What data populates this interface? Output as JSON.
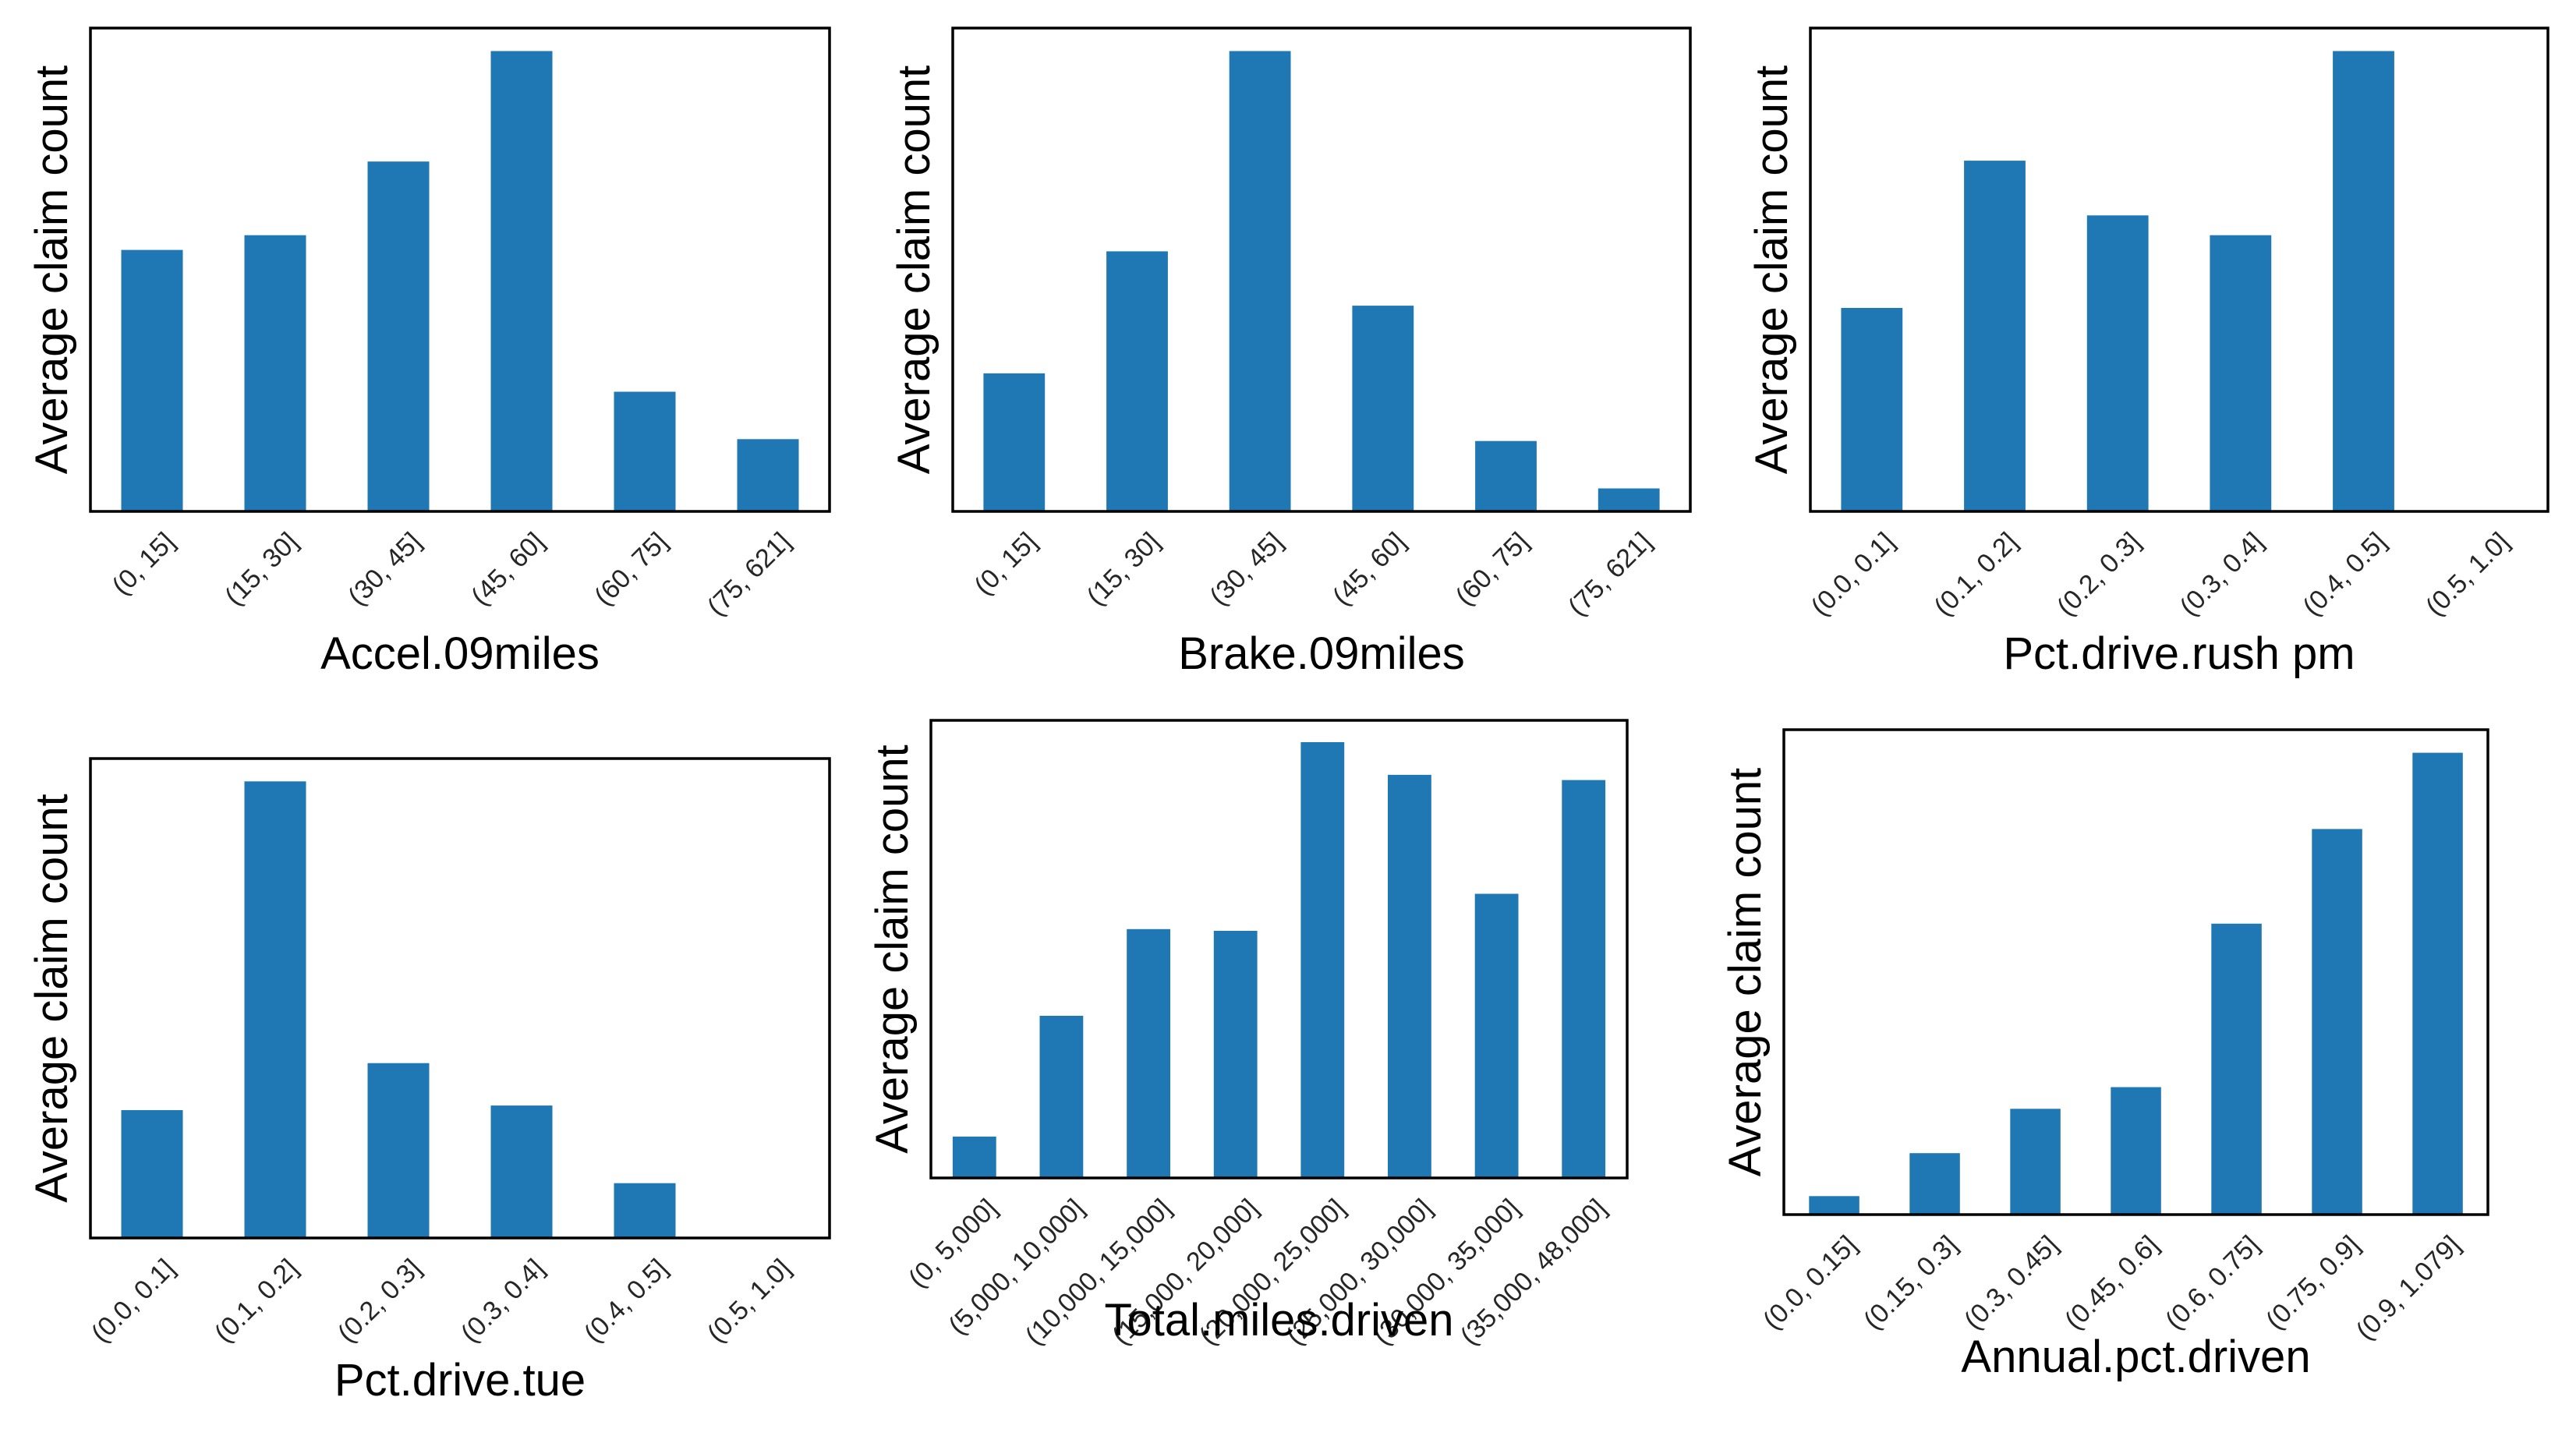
{
  "chart_data": [
    {
      "type": "bar",
      "xlabel": "Accel.09miles",
      "ylabel": "Average claim count",
      "categories": [
        "(0, 15]",
        "(15, 30]",
        "(30, 45]",
        "(45, 60]",
        "(60, 75]",
        "(75, 621]"
      ],
      "values": [
        0.568,
        0.6,
        0.76,
        1.0,
        0.26,
        0.157
      ],
      "ylim": [
        0,
        1.05
      ],
      "yticks_shown": false,
      "grid": false,
      "bar_color": "#1f77b4"
    },
    {
      "type": "bar",
      "xlabel": "Brake.09miles",
      "ylabel": "Average claim count",
      "categories": [
        "(0, 15]",
        "(15, 30]",
        "(30, 45]",
        "(45, 60]",
        "(60, 75]",
        "(75, 621]"
      ],
      "values": [
        0.3,
        0.565,
        1.0,
        0.447,
        0.153,
        0.05
      ],
      "ylim": [
        0,
        1.05
      ],
      "yticks_shown": false,
      "grid": false,
      "bar_color": "#1f77b4"
    },
    {
      "type": "bar",
      "xlabel": "Pct.drive.rush pm",
      "ylabel": "Average claim count",
      "categories": [
        "(0.0, 0.1]",
        "(0.1, 0.2]",
        "(0.2, 0.3]",
        "(0.3, 0.4]",
        "(0.4, 0.5]",
        "(0.5, 1.0]"
      ],
      "values": [
        0.442,
        0.762,
        0.643,
        0.6,
        1.0,
        0.0
      ],
      "ylim": [
        0,
        1.05
      ],
      "yticks_shown": false,
      "grid": false,
      "bar_color": "#1f77b4"
    },
    {
      "type": "bar",
      "xlabel": "Pct.drive.tue",
      "ylabel": "Average claim count",
      "categories": [
        "(0.0, 0.1]",
        "(0.1, 0.2]",
        "(0.2, 0.3]",
        "(0.3, 0.4]",
        "(0.4, 0.5]",
        "(0.5, 1.0]"
      ],
      "values": [
        0.28,
        1.0,
        0.383,
        0.29,
        0.12,
        0.0
      ],
      "ylim": [
        0,
        1.05
      ],
      "yticks_shown": false,
      "grid": false,
      "bar_color": "#1f77b4"
    },
    {
      "type": "bar",
      "xlabel": "Total.miles.driven",
      "ylabel": "Average claim count",
      "categories": [
        "(0, 5,000]",
        "(5,000, 10,000]",
        "(10,000, 15,000]",
        "(15,000, 20,000]",
        "(20,000, 25,000]",
        "(25,000, 30,000]",
        "(30,000, 35,000]",
        "(35,000, 48,000]"
      ],
      "values": [
        0.095,
        0.372,
        0.571,
        0.567,
        1.0,
        0.925,
        0.652,
        0.913
      ],
      "ylim": [
        0,
        1.05
      ],
      "yticks_shown": false,
      "grid": false,
      "bar_color": "#1f77b4"
    },
    {
      "type": "bar",
      "xlabel": "Annual.pct.driven",
      "ylabel": "Average claim count",
      "categories": [
        "(0.0, 0.15]",
        "(0.15, 0.3]",
        "(0.3, 0.45]",
        "(0.45, 0.6]",
        "(0.6, 0.75]",
        "(0.75, 0.9]",
        "(0.9, 1.079]"
      ],
      "values": [
        0.04,
        0.133,
        0.229,
        0.276,
        0.63,
        0.835,
        1.0
      ],
      "ylim": [
        0,
        1.05
      ],
      "yticks_shown": false,
      "grid": false,
      "bar_color": "#1f77b4"
    }
  ]
}
